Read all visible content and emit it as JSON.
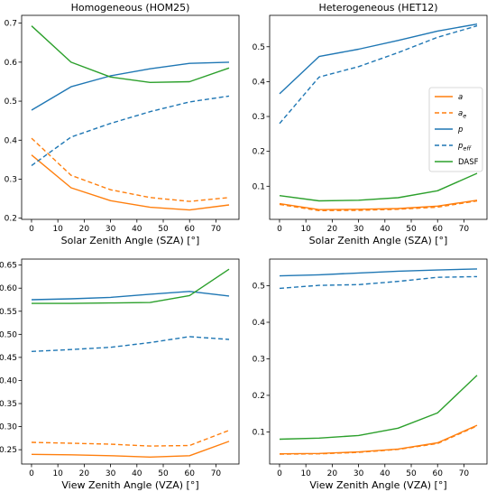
{
  "chart_data": [
    {
      "type": "line",
      "title": "Homogeneous (HOM25)",
      "xlabel": "Solar Zenith Angle (SZA) [°]",
      "ylabel": "",
      "x": [
        0,
        15,
        30,
        45,
        60,
        75
      ],
      "xticks": [
        0,
        10,
        20,
        30,
        40,
        50,
        60,
        70
      ],
      "xlim": [
        -3.75,
        78.75
      ],
      "yticks": [
        0.2,
        0.3,
        0.4,
        0.5,
        0.6,
        0.7
      ],
      "ytick_labels": [
        "0.2",
        "0.3",
        "0.4",
        "0.5",
        "0.6",
        "0.7"
      ],
      "ylim": [
        0.197,
        0.72
      ],
      "series": [
        {
          "key": "a",
          "values": [
            0.362,
            0.278,
            0.245,
            0.228,
            0.221,
            0.234
          ]
        },
        {
          "key": "ae",
          "values": [
            0.405,
            0.31,
            0.273,
            0.253,
            0.243,
            0.253
          ]
        },
        {
          "key": "p",
          "values": [
            0.477,
            0.537,
            0.565,
            0.583,
            0.597,
            0.6
          ]
        },
        {
          "key": "peff",
          "values": [
            0.335,
            0.408,
            0.443,
            0.473,
            0.498,
            0.513
          ]
        },
        {
          "key": "dasf",
          "values": [
            0.693,
            0.6,
            0.562,
            0.548,
            0.55,
            0.585
          ]
        }
      ]
    },
    {
      "type": "line",
      "title": "Heterogeneous (HET12)",
      "xlabel": "Solar Zenith Angle (SZA) [°]",
      "ylabel": "",
      "x": [
        0,
        15,
        30,
        45,
        60,
        75
      ],
      "xticks": [
        0,
        10,
        20,
        30,
        40,
        50,
        60,
        70
      ],
      "xlim": [
        -3.75,
        78.75
      ],
      "yticks": [
        0.1,
        0.2,
        0.3,
        0.4,
        0.5
      ],
      "ytick_labels": [
        "0.1",
        "0.2",
        "0.3",
        "0.4",
        "0.5"
      ],
      "ylim": [
        0.005,
        0.59
      ],
      "legend": "right",
      "series": [
        {
          "key": "a",
          "values": [
            0.05,
            0.033,
            0.034,
            0.036,
            0.043,
            0.06
          ]
        },
        {
          "key": "ae",
          "values": [
            0.048,
            0.03,
            0.031,
            0.034,
            0.04,
            0.058
          ]
        },
        {
          "key": "p",
          "values": [
            0.365,
            0.472,
            0.493,
            0.518,
            0.545,
            0.565
          ]
        },
        {
          "key": "peff",
          "values": [
            0.28,
            0.413,
            0.443,
            0.483,
            0.527,
            0.56
          ]
        },
        {
          "key": "dasf",
          "values": [
            0.073,
            0.058,
            0.06,
            0.067,
            0.087,
            0.137
          ]
        }
      ]
    },
    {
      "type": "line",
      "title": "",
      "xlabel": "View Zenith Angle (VZA) [°]",
      "ylabel": "",
      "x": [
        0,
        15,
        30,
        45,
        60,
        75
      ],
      "xticks": [
        0,
        10,
        20,
        30,
        40,
        50,
        60,
        70
      ],
      "xlim": [
        -3.75,
        78.75
      ],
      "yticks": [
        0.25,
        0.3,
        0.35,
        0.4,
        0.45,
        0.5,
        0.55,
        0.6,
        0.65
      ],
      "ytick_labels": [
        "0.25",
        "0.30",
        "0.35",
        "0.40",
        "0.45",
        "0.50",
        "0.55",
        "0.60",
        "0.65"
      ],
      "ylim": [
        0.219,
        0.663
      ],
      "series": [
        {
          "key": "a",
          "values": [
            0.24,
            0.239,
            0.237,
            0.234,
            0.237,
            0.268
          ]
        },
        {
          "key": "ae",
          "values": [
            0.266,
            0.264,
            0.262,
            0.258,
            0.259,
            0.292
          ]
        },
        {
          "key": "p",
          "values": [
            0.575,
            0.577,
            0.58,
            0.587,
            0.593,
            0.583
          ]
        },
        {
          "key": "peff",
          "values": [
            0.463,
            0.467,
            0.472,
            0.482,
            0.495,
            0.489
          ]
        },
        {
          "key": "dasf",
          "values": [
            0.567,
            0.567,
            0.568,
            0.569,
            0.584,
            0.641
          ]
        }
      ]
    },
    {
      "type": "line",
      "title": "",
      "xlabel": "View Zenith Angle (VZA) [°]",
      "ylabel": "",
      "x": [
        0,
        15,
        30,
        45,
        60,
        75
      ],
      "xticks": [
        0,
        10,
        20,
        30,
        40,
        50,
        60,
        70
      ],
      "xlim": [
        -3.75,
        78.75
      ],
      "yticks": [
        0.1,
        0.2,
        0.3,
        0.4,
        0.5
      ],
      "ytick_labels": [
        "0.1",
        "0.2",
        "0.3",
        "0.4",
        "0.5"
      ],
      "ylim": [
        0.012,
        0.573
      ],
      "series": [
        {
          "key": "a",
          "values": [
            0.04,
            0.041,
            0.045,
            0.053,
            0.07,
            0.118
          ]
        },
        {
          "key": "ae",
          "values": [
            0.039,
            0.04,
            0.044,
            0.052,
            0.068,
            0.116
          ]
        },
        {
          "key": "p",
          "values": [
            0.527,
            0.53,
            0.535,
            0.54,
            0.543,
            0.546
          ]
        },
        {
          "key": "peff",
          "values": [
            0.493,
            0.501,
            0.503,
            0.512,
            0.523,
            0.525
          ]
        },
        {
          "key": "dasf",
          "values": [
            0.08,
            0.083,
            0.09,
            0.11,
            0.152,
            0.255
          ]
        }
      ]
    }
  ],
  "series_style": {
    "a": {
      "color": "#ff7f0e",
      "dash": "solid"
    },
    "ae": {
      "color": "#ff7f0e",
      "dash": "dashed"
    },
    "p": {
      "color": "#1f77b4",
      "dash": "solid"
    },
    "peff": {
      "color": "#1f77b4",
      "dash": "dashed"
    },
    "dasf": {
      "color": "#2ca02c",
      "dash": "solid"
    }
  },
  "legend": [
    {
      "key": "a",
      "base": "a",
      "sub": ""
    },
    {
      "key": "ae",
      "base": "a",
      "sub": "e"
    },
    {
      "key": "p",
      "base": "p",
      "sub": ""
    },
    {
      "key": "peff",
      "base": "p",
      "sub": "eff"
    },
    {
      "key": "dasf",
      "base": "DASF",
      "sub": ""
    }
  ]
}
